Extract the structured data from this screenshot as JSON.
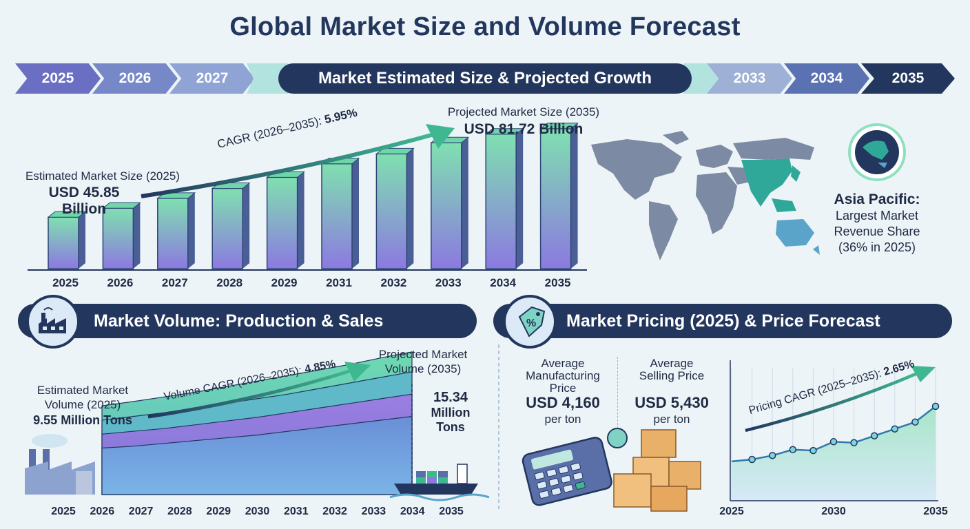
{
  "title": "Global Market Size and Volume Forecast",
  "timeline": {
    "years_left": [
      "2025",
      "2026",
      "2027"
    ],
    "banner": "Market Estimated Size & Projected Growth",
    "years_right": [
      "2033",
      "2034",
      "2035"
    ]
  },
  "market_size": {
    "estimated_label": "Estimated Market Size (2025)",
    "estimated_value": "USD 45.85 Billion",
    "cagr_label": "CAGR (2026–2035):",
    "cagr_value": "5.95%",
    "projected_label": "Projected Market Size (2035)",
    "projected_value": "USD 81.72 Billion"
  },
  "region": {
    "name": "Asia Pacific:",
    "desc_line1": "Largest Market",
    "desc_line2": "Revenue Share",
    "desc_line3": "(36% in 2025)"
  },
  "volume": {
    "banner": "Market Volume: Production & Sales",
    "estimated_label_line1": "Estimated Market",
    "estimated_label_line2": "Volume (2025)",
    "estimated_value": "9.55 Million Tons",
    "cagr_label": "Volume CAGR (2026–2035):",
    "cagr_value": "4.85%",
    "projected_label_line1": "Projected Market",
    "projected_label_line2": "Volume (2035)",
    "projected_value_line1": "15.34",
    "projected_value_line2": "Million",
    "projected_value_line3": "Tons"
  },
  "pricing": {
    "banner": "Market Pricing (2025) & Price Forecast",
    "mfg_label_line1": "Average",
    "mfg_label_line2": "Manufacturing",
    "mfg_label_line3": "Price",
    "mfg_value": "USD 4,160",
    "mfg_unit": "per ton",
    "sell_label_line1": "Average",
    "sell_label_line2": "Selling Price",
    "sell_value": "USD 5,430",
    "sell_unit": "per ton",
    "cagr_label": "Pricing CAGR (2025–2035):",
    "cagr_value": "2.65%"
  },
  "colors": {
    "navy": "#22365e",
    "bar_top": "#7fe0b0",
    "bar_bottom": "#8c79e0",
    "map_gray": "#7d8aa3",
    "map_highlight": "#2fa899",
    "australia": "#5aa3c9"
  },
  "icons": [
    "factory-icon",
    "price-tag-icon",
    "globe-icon",
    "ship-icon",
    "calculator-icon",
    "boxes-icon"
  ],
  "chart_data": [
    {
      "type": "bar",
      "categories": [
        "2025",
        "2026",
        "2027",
        "2028",
        "2029",
        "2031",
        "2032",
        "2033",
        "2034",
        "2035"
      ],
      "values": [
        45.85,
        49.5,
        53.5,
        57.5,
        62.0,
        67.5,
        71.5,
        76.0,
        79.5,
        81.72
      ],
      "ylim": [
        25,
        85
      ]
    },
    {
      "type": "area",
      "x": [
        "2025",
        "2026",
        "2027",
        "2028",
        "2029",
        "2030",
        "2031",
        "2032",
        "2033",
        "2034",
        "2035"
      ],
      "series": [
        {
          "values": [
            9.55,
            10.0,
            10.5,
            11.0,
            11.6,
            12.2,
            12.8,
            13.4,
            14.0,
            14.7,
            15.34
          ]
        },
        {
          "values": [
            8.0,
            8.4,
            8.8,
            9.3,
            9.8,
            10.3,
            10.8,
            11.4,
            12.0,
            12.6,
            13.2
          ]
        },
        {
          "values": [
            6.5,
            6.8,
            7.1,
            7.5,
            7.9,
            8.3,
            8.8,
            9.3,
            9.8,
            10.3,
            10.8
          ]
        },
        {
          "values": [
            5.0,
            5.2,
            5.5,
            5.8,
            6.1,
            6.4,
            6.8,
            7.2,
            7.6,
            8.0,
            8.4
          ]
        }
      ],
      "xlabels": [
        "2025",
        "2026",
        "2027",
        "2028",
        "2029",
        "2030",
        "2031",
        "2032",
        "2033",
        "2034",
        "2035"
      ],
      "ylim": [
        0,
        20
      ]
    },
    {
      "type": "line",
      "x": [
        2025,
        2026,
        2027,
        2028,
        2029,
        2030,
        2031,
        2032,
        2033,
        2034,
        2035
      ],
      "values": [
        100,
        102,
        106,
        112,
        111,
        120,
        119,
        126,
        133,
        140,
        156
      ],
      "xticks": [
        "2025",
        "2030",
        "2035"
      ],
      "ylim": [
        60,
        200
      ]
    }
  ]
}
